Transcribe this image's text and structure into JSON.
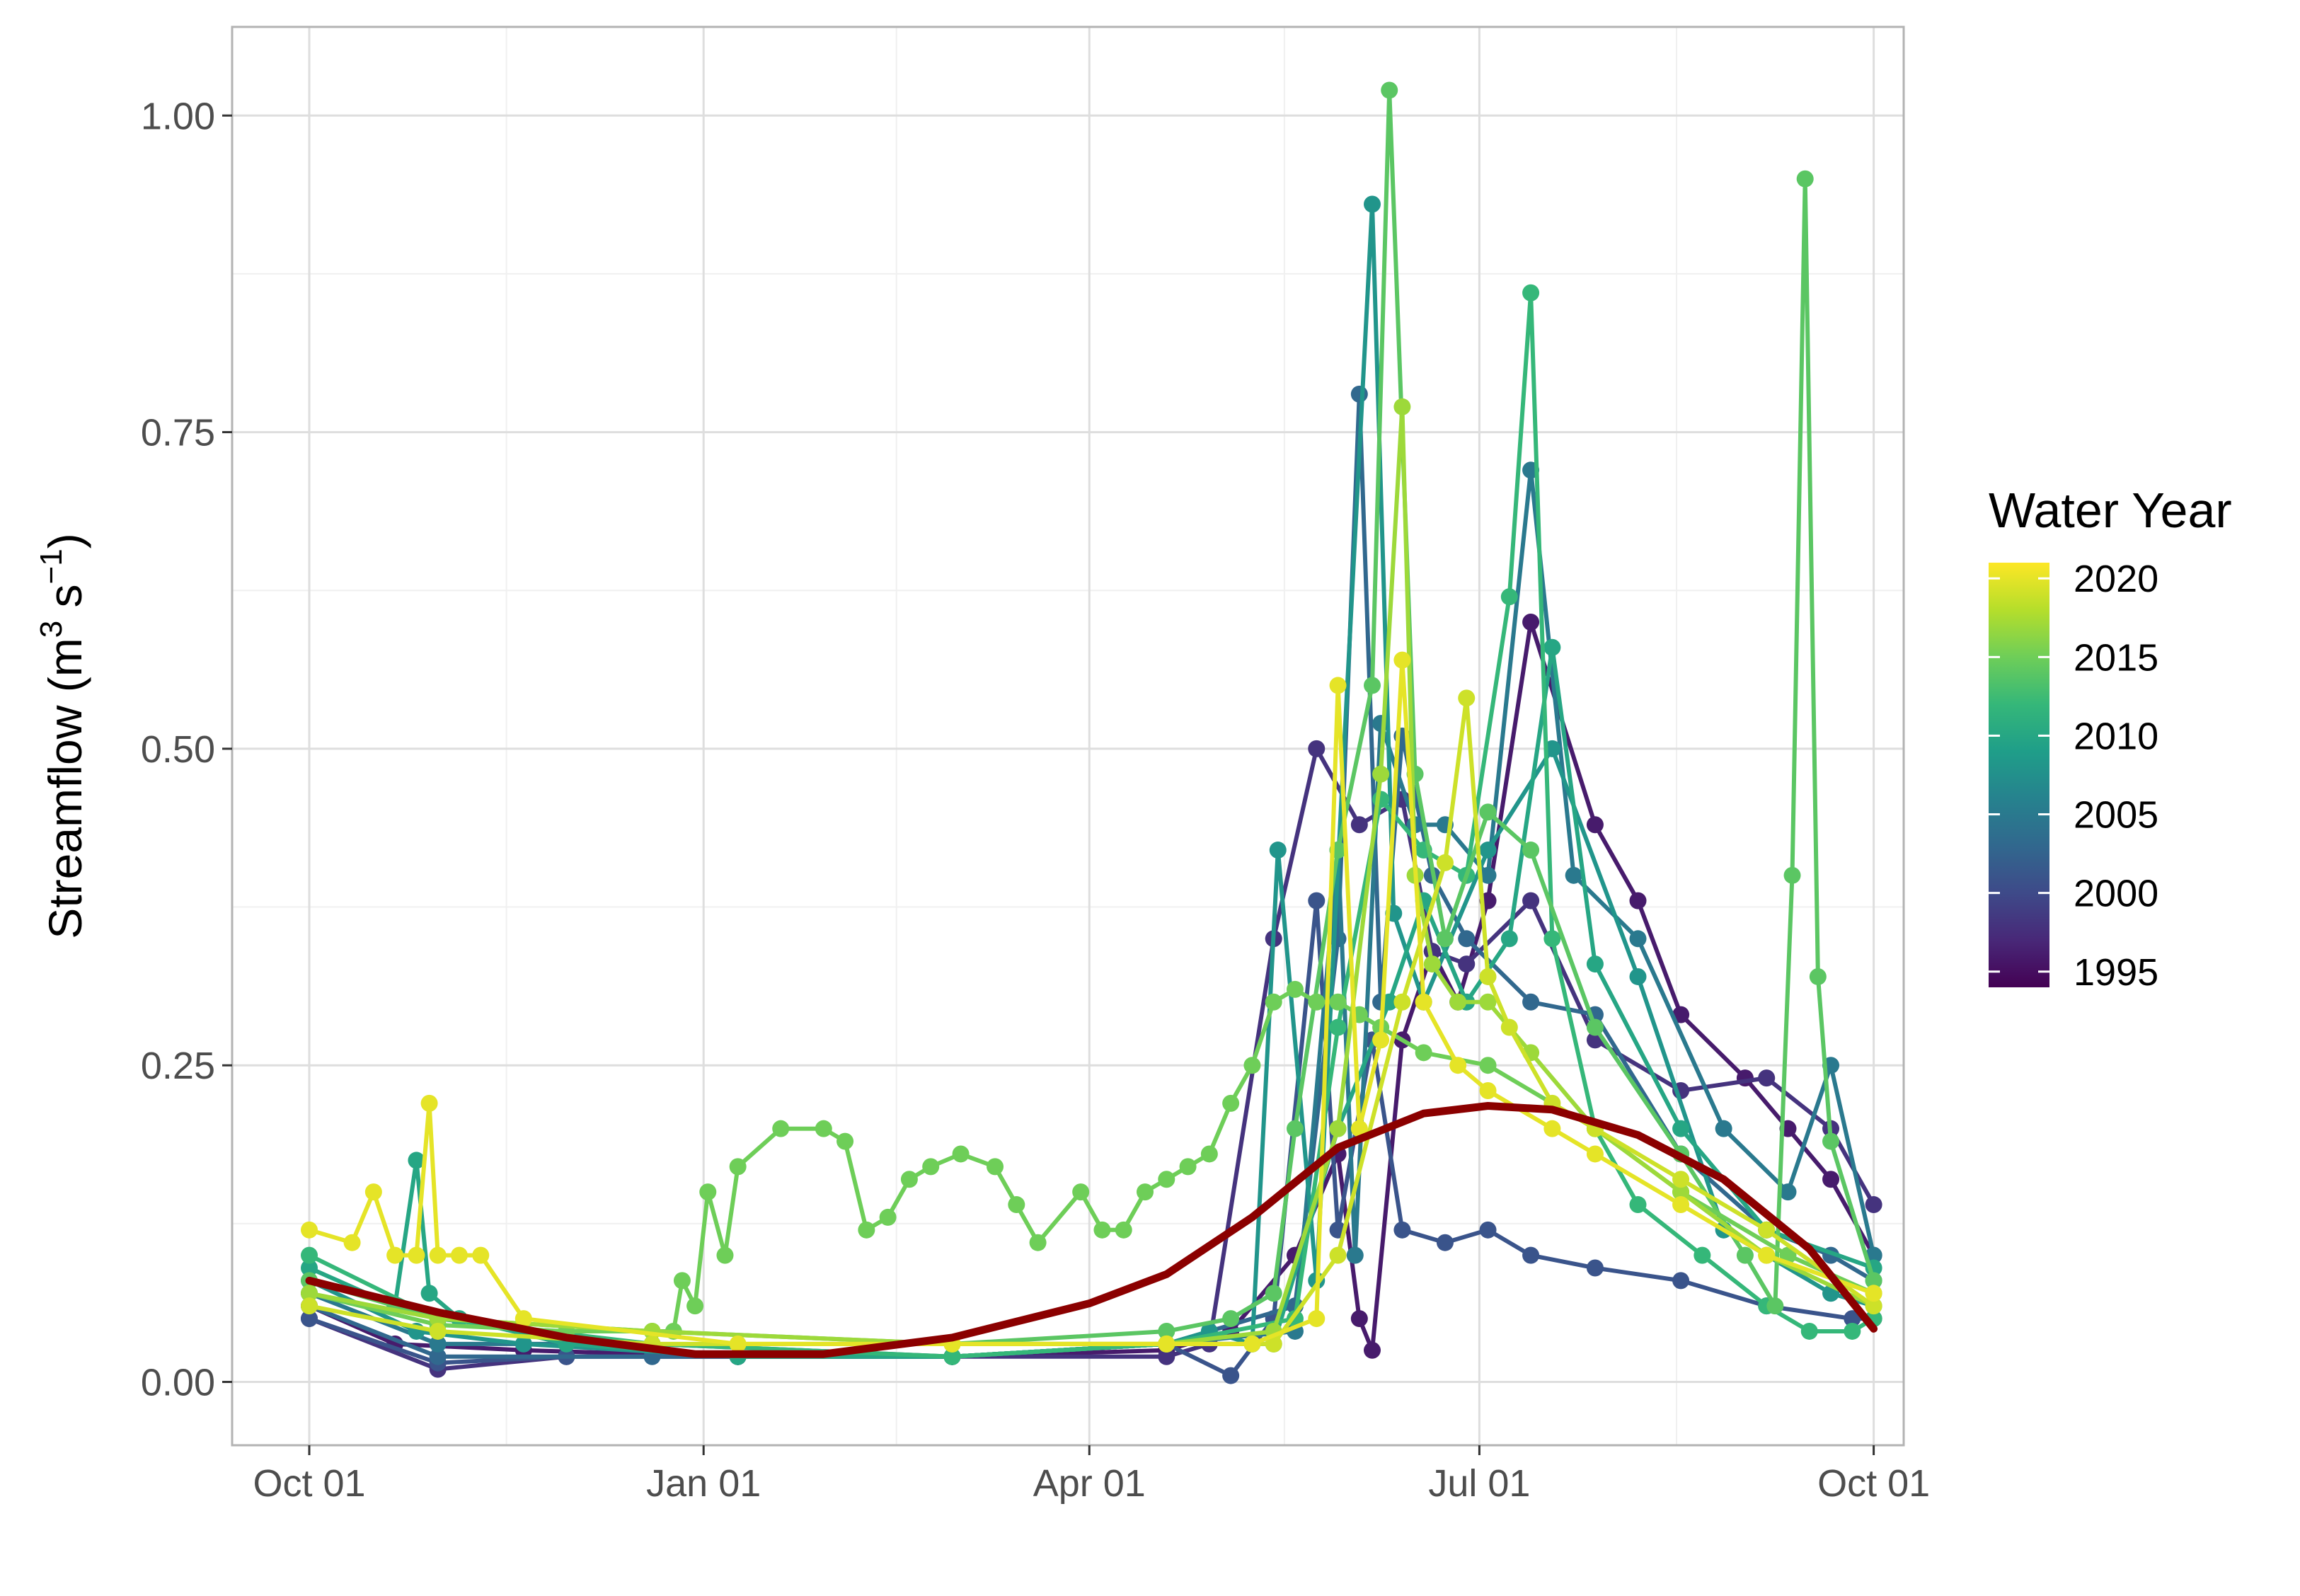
{
  "chart_data": {
    "type": "line",
    "title": "",
    "xlabel": "",
    "ylabel": "Streamflow (m³ s⁻¹)",
    "ylabel_parts": {
      "prefix": "Streamflow (m",
      "sup1": "3",
      "mid": " s",
      "sup2": "−1",
      "suffix": ")"
    },
    "x_ticks": [
      "Oct 01",
      "Jan 01",
      "Apr 01",
      "Jul 01",
      "Oct 01"
    ],
    "x_tick_days": [
      0,
      92,
      182,
      273,
      365
    ],
    "x_domain": [
      -18,
      372
    ],
    "y_ticks": [
      0.0,
      0.25,
      0.5,
      0.75,
      1.0
    ],
    "y_tick_labels": [
      "0.00",
      "0.25",
      "0.50",
      "0.75",
      "1.00"
    ],
    "ylim": [
      -0.05,
      1.07
    ],
    "grid": true,
    "legend": {
      "title": "Water Year",
      "position": "right",
      "color_scale": "viridis",
      "range": [
        1994,
        2021
      ],
      "ticks": [
        1995,
        2000,
        2005,
        2010,
        2015,
        2020
      ],
      "gradient_stops": [
        "#440154",
        "#482878",
        "#3e4a89",
        "#31688e",
        "#26828e",
        "#1f9e89",
        "#35b779",
        "#6ece58",
        "#b5de2b",
        "#fde725"
      ]
    },
    "x_unit": "day of water year (Oct 01 = 0)",
    "smooth_curve": {
      "color": "#8b0000",
      "x": [
        0,
        30,
        60,
        90,
        120,
        150,
        182,
        200,
        220,
        240,
        260,
        275,
        290,
        310,
        330,
        350,
        365
      ],
      "y": [
        0.08,
        0.055,
        0.035,
        0.022,
        0.022,
        0.035,
        0.062,
        0.085,
        0.13,
        0.185,
        0.212,
        0.218,
        0.215,
        0.195,
        0.16,
        0.105,
        0.042
      ]
    },
    "series": [
      {
        "year": 1996,
        "x": [
          0,
          20,
          50,
          100,
          150,
          200,
          215,
          230,
          240,
          245,
          248,
          255,
          262,
          268,
          275,
          285,
          300,
          310,
          320,
          335,
          345,
          355,
          365
        ],
        "y": [
          0.06,
          0.03,
          0.025,
          0.02,
          0.02,
          0.025,
          0.04,
          0.1,
          0.18,
          0.05,
          0.025,
          0.27,
          0.34,
          0.3,
          0.38,
          0.6,
          0.44,
          0.38,
          0.29,
          0.24,
          0.2,
          0.16,
          0.1
        ]
      },
      {
        "year": 1998,
        "x": [
          0,
          30,
          60,
          100,
          150,
          200,
          210,
          225,
          235,
          245,
          255,
          262,
          270,
          285,
          300,
          320,
          340,
          355,
          365
        ],
        "y": [
          0.05,
          0.01,
          0.02,
          0.02,
          0.02,
          0.02,
          0.03,
          0.35,
          0.5,
          0.44,
          0.46,
          0.34,
          0.33,
          0.38,
          0.27,
          0.23,
          0.24,
          0.2,
          0.14
        ]
      },
      {
        "year": 2001,
        "x": [
          0,
          30,
          60,
          100,
          150,
          200,
          215,
          225,
          235,
          240,
          248,
          255,
          265,
          275,
          285,
          300,
          320,
          340,
          360,
          365
        ],
        "y": [
          0.05,
          0.015,
          0.02,
          0.02,
          0.02,
          0.03,
          0.005,
          0.05,
          0.38,
          0.12,
          0.27,
          0.12,
          0.11,
          0.12,
          0.1,
          0.09,
          0.08,
          0.06,
          0.05,
          0.05
        ]
      },
      {
        "year": 2003,
        "x": [
          0,
          30,
          80,
          150,
          200,
          230,
          240,
          245,
          250,
          255,
          262,
          270,
          285,
          300,
          320,
          340,
          355,
          365
        ],
        "y": [
          0.06,
          0.02,
          0.02,
          0.02,
          0.03,
          0.06,
          0.35,
          0.78,
          0.3,
          0.51,
          0.4,
          0.35,
          0.3,
          0.29,
          0.18,
          0.12,
          0.1,
          0.08
        ]
      },
      {
        "year": 2005,
        "x": [
          0,
          30,
          80,
          150,
          200,
          230,
          240,
          244,
          250,
          258,
          265,
          275,
          285,
          295,
          310,
          330,
          345,
          355,
          365
        ],
        "y": [
          0.07,
          0.03,
          0.03,
          0.02,
          0.03,
          0.04,
          0.42,
          0.1,
          0.52,
          0.44,
          0.44,
          0.4,
          0.72,
          0.4,
          0.35,
          0.2,
          0.15,
          0.25,
          0.1
        ]
      },
      {
        "year": 2008,
        "x": [
          0,
          25,
          50,
          100,
          150,
          200,
          210,
          220,
          226,
          235,
          248,
          253,
          260,
          275,
          290,
          310,
          330,
          355,
          365
        ],
        "y": [
          0.08,
          0.04,
          0.03,
          0.02,
          0.02,
          0.03,
          0.04,
          0.03,
          0.42,
          0.08,
          0.93,
          0.37,
          0.3,
          0.42,
          0.5,
          0.32,
          0.12,
          0.07,
          0.06
        ]
      },
      {
        "year": 2010,
        "x": [
          0,
          20,
          25,
          28,
          35,
          60,
          100,
          150,
          200,
          225,
          240,
          252,
          260,
          270,
          280,
          290,
          300,
          320,
          340,
          365
        ],
        "y": [
          0.09,
          0.06,
          0.175,
          0.07,
          0.05,
          0.03,
          0.02,
          0.02,
          0.03,
          0.03,
          0.2,
          0.3,
          0.38,
          0.3,
          0.35,
          0.58,
          0.33,
          0.2,
          0.12,
          0.09
        ]
      },
      {
        "year": 2012,
        "x": [
          0,
          30,
          80,
          150,
          200,
          230,
          240,
          250,
          260,
          270,
          280,
          285,
          290,
          300,
          310,
          325,
          340,
          350,
          360,
          365
        ],
        "y": [
          0.1,
          0.05,
          0.03,
          0.02,
          0.03,
          0.05,
          0.28,
          0.46,
          0.42,
          0.4,
          0.62,
          0.86,
          0.35,
          0.2,
          0.14,
          0.1,
          0.06,
          0.04,
          0.04,
          0.05
        ]
      },
      {
        "year": 2014,
        "x": [
          0,
          30,
          80,
          150,
          200,
          215,
          225,
          230,
          240,
          248,
          252,
          258,
          265,
          275,
          285,
          300,
          320,
          335,
          342,
          346,
          349,
          352,
          355,
          365
        ],
        "y": [
          0.08,
          0.05,
          0.04,
          0.03,
          0.04,
          0.05,
          0.07,
          0.2,
          0.42,
          0.55,
          1.02,
          0.48,
          0.35,
          0.45,
          0.42,
          0.28,
          0.18,
          0.1,
          0.06,
          0.4,
          0.95,
          0.32,
          0.19,
          0.08
        ]
      },
      {
        "year": 2015,
        "x": [
          0,
          30,
          60,
          85,
          87,
          90,
          93,
          97,
          100,
          110,
          120,
          125,
          130,
          135,
          140,
          145,
          152,
          160,
          165,
          170,
          180,
          185,
          190,
          195,
          200,
          205,
          210,
          215,
          220,
          225,
          230,
          235,
          240,
          245,
          250,
          260,
          275,
          300,
          320,
          345,
          365
        ],
        "y": [
          0.07,
          0.045,
          0.04,
          0.04,
          0.08,
          0.06,
          0.15,
          0.1,
          0.17,
          0.2,
          0.2,
          0.19,
          0.12,
          0.13,
          0.16,
          0.17,
          0.18,
          0.17,
          0.14,
          0.11,
          0.15,
          0.12,
          0.12,
          0.15,
          0.16,
          0.17,
          0.18,
          0.22,
          0.25,
          0.3,
          0.31,
          0.3,
          0.3,
          0.29,
          0.28,
          0.26,
          0.25,
          0.2,
          0.15,
          0.1,
          0.07
        ]
      },
      {
        "year": 2017,
        "x": [
          0,
          30,
          80,
          150,
          200,
          225,
          240,
          250,
          255,
          258,
          262,
          268,
          275,
          285,
          300,
          320,
          340,
          365
        ],
        "y": [
          0.07,
          0.05,
          0.04,
          0.03,
          0.03,
          0.04,
          0.2,
          0.48,
          0.77,
          0.4,
          0.33,
          0.3,
          0.3,
          0.26,
          0.2,
          0.15,
          0.1,
          0.06
        ]
      },
      {
        "year": 2019,
        "x": [
          0,
          30,
          80,
          150,
          200,
          225,
          240,
          255,
          265,
          270,
          275,
          280,
          290,
          300,
          320,
          340,
          365
        ],
        "y": [
          0.06,
          0.04,
          0.03,
          0.03,
          0.03,
          0.03,
          0.1,
          0.3,
          0.41,
          0.54,
          0.32,
          0.28,
          0.22,
          0.2,
          0.16,
          0.12,
          0.06
        ]
      },
      {
        "year": 2020,
        "x": [
          0,
          10,
          15,
          20,
          25,
          28,
          30,
          35,
          40,
          50,
          100,
          150,
          200,
          220,
          235,
          240,
          245,
          250,
          255,
          260,
          268,
          275,
          290,
          300,
          320,
          340,
          365
        ],
        "y": [
          0.12,
          0.11,
          0.15,
          0.1,
          0.1,
          0.22,
          0.1,
          0.1,
          0.1,
          0.05,
          0.03,
          0.03,
          0.03,
          0.03,
          0.05,
          0.55,
          0.2,
          0.27,
          0.57,
          0.3,
          0.25,
          0.23,
          0.2,
          0.18,
          0.14,
          0.1,
          0.07
        ]
      }
    ]
  }
}
